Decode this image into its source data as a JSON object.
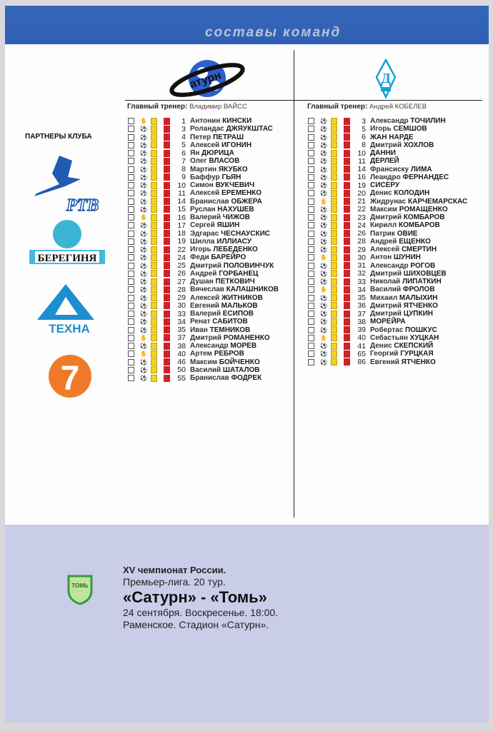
{
  "header": {
    "title": "составы команд"
  },
  "home": {
    "logo_text": "атурн",
    "coach_label": "Главный тренер:",
    "coach": "Владимир ВАЙСС",
    "players": [
      [
        "1",
        "Антонин",
        "КИНСКИ",
        "glove"
      ],
      [
        "3",
        "Роландас",
        "ДЖЯУКШТАС",
        "ball"
      ],
      [
        "4",
        "Петер",
        "ПЕТРАШ",
        "ball"
      ],
      [
        "5",
        "Алексей",
        "ИГОНИН",
        "ball"
      ],
      [
        "6",
        "Ян",
        "ДЮРИЦА",
        "ball"
      ],
      [
        "7",
        "Олег",
        "ВЛАСОВ",
        "ball"
      ],
      [
        "8",
        "Мартин",
        "ЯКУБКО",
        "ball"
      ],
      [
        "9",
        "Баффур",
        "ГЬЯН",
        "ball"
      ],
      [
        "10",
        "Симон",
        "ВУКЧЕВИЧ",
        "ball"
      ],
      [
        "11",
        "Алексей",
        "ЕРЕМЕНКО",
        "ball"
      ],
      [
        "14",
        "Бранислав",
        "ОБЖЕРА",
        "ball"
      ],
      [
        "15",
        "Руслан",
        "НАХУШЕВ",
        "ball"
      ],
      [
        "16",
        "Валерий",
        "ЧИЖОВ",
        "glove"
      ],
      [
        "17",
        "Сергей",
        "ЯШИН",
        "ball"
      ],
      [
        "18",
        "Эдгарас",
        "ЧЕСНАУСКИС",
        "ball"
      ],
      [
        "19",
        "Шилла",
        "ИЛЛИАСУ",
        "ball"
      ],
      [
        "22",
        "Игорь",
        "ЛЕБЕДЕНКО",
        "ball"
      ],
      [
        "24",
        "Феди",
        "БАРЕЙРО",
        "ball"
      ],
      [
        "25",
        "Дмитрий",
        "ПОЛОВИНЧУК",
        "ball"
      ],
      [
        "26",
        "Андрей",
        "ГОРБАНЕЦ",
        "ball"
      ],
      [
        "27",
        "Душан",
        "ПЕТКОВИЧ",
        "ball"
      ],
      [
        "28",
        "Вячеслав",
        "КАЛАШНИКОВ",
        "ball"
      ],
      [
        "29",
        "Алексей",
        "ЖИТНИКОВ",
        "ball"
      ],
      [
        "30",
        "Евгений",
        "МАЛЬКОВ",
        "ball"
      ],
      [
        "33",
        "Валерий",
        "ЕСИПОВ",
        "ball"
      ],
      [
        "34",
        "Ренат",
        "САБИТОВ",
        "ball"
      ],
      [
        "35",
        "Иван",
        "ТЕМНИКОВ",
        "ball"
      ],
      [
        "37",
        "Дмитрий",
        "РОМАНЕНКО",
        "glove"
      ],
      [
        "38",
        "Александр",
        "МОРЕВ",
        "ball"
      ],
      [
        "40",
        "Артем",
        "РЕБРОВ",
        "glove"
      ],
      [
        "46",
        "Максим",
        "БОЙЧЕНКО",
        "ball"
      ],
      [
        "50",
        "Василий",
        "ШАТАЛОВ",
        "ball"
      ],
      [
        "55",
        "Бранислав",
        "ФОДРЕК",
        "ball"
      ]
    ]
  },
  "away": {
    "logo_text": "Д",
    "coach_label": "Главный тренер:",
    "coach": "Андрей КОБЕЛЕВ",
    "players": [
      [
        "3",
        "Александр",
        "ТОЧИЛИН",
        "ball"
      ],
      [
        "5",
        "Игорь",
        "СЕМШОВ",
        "ball"
      ],
      [
        "6",
        "",
        "ЖАН НАРДЕ",
        "ball"
      ],
      [
        "8",
        "Дмитрий",
        "ХОХЛОВ",
        "ball"
      ],
      [
        "10",
        "",
        "ДАННИ",
        "ball"
      ],
      [
        "11",
        "",
        "ДЕРЛЕЙ",
        "ball"
      ],
      [
        "14",
        "Франсиску",
        "ЛИМА",
        "ball"
      ],
      [
        "16",
        "Леандро",
        "ФЕРНАНДЕС",
        "ball"
      ],
      [
        "19",
        "",
        "СИСЕРУ",
        "ball"
      ],
      [
        "20",
        "Денис",
        "КОЛОДИН",
        "ball"
      ],
      [
        "21",
        "Жидрунас",
        "КАРЧЕМАРСКАС",
        "glove"
      ],
      [
        "22",
        "Максим",
        "РОМАЩЕНКО",
        "ball"
      ],
      [
        "23",
        "Дмитрий",
        "КОМБАРОВ",
        "ball"
      ],
      [
        "24",
        "Кирилл",
        "КОМБАРОВ",
        "ball"
      ],
      [
        "26",
        "Патрик",
        "ОВИЕ",
        "ball"
      ],
      [
        "28",
        "Андрей",
        "ЕЩЕНКО",
        "ball"
      ],
      [
        "29",
        "Алексей",
        "СМЕРТИН",
        "ball"
      ],
      [
        "30",
        "Антон",
        "ШУНИН",
        "glove"
      ],
      [
        "31",
        "Александр",
        "РОГОВ",
        "ball"
      ],
      [
        "32",
        "Дмитрий",
        "ШИХОВЦЕВ",
        "ball"
      ],
      [
        "33",
        "Николай",
        "ЛИПАТКИН",
        "ball"
      ],
      [
        "34",
        "Василий",
        "ФРОЛОВ",
        "glove"
      ],
      [
        "35",
        "Михаил",
        "МАЛЫХИН",
        "ball"
      ],
      [
        "36",
        "Дмитрий",
        "ЯТЧЕНКО",
        "ball"
      ],
      [
        "37",
        "Дмитрий",
        "ЦУПКИН",
        "ball"
      ],
      [
        "38",
        "",
        "МОРЕЙРА",
        "ball"
      ],
      [
        "39",
        "Робертас",
        "ПОШКУС",
        "ball"
      ],
      [
        "40",
        "Себастьян",
        "ХУЦКАН",
        "glove"
      ],
      [
        "41",
        "Денис",
        "СКЕПСКИЙ",
        "ball"
      ],
      [
        "65",
        "Георгий",
        "ГУРЦКАЯ",
        "ball"
      ],
      [
        "86",
        "Евгений",
        "ЯТЧЕНКО",
        "ball"
      ]
    ]
  },
  "partners": {
    "title": "ПАРТНЕРЫ КЛУБА",
    "logos": [
      "РТВ",
      "БЕРЕГИНЯ",
      "ТЕХНА",
      "7"
    ]
  },
  "match": {
    "line1": "XV чемпионат России.",
    "line2": "Премьер-лига. 20 тур.",
    "line3": "«Сатурн» - «Томь»",
    "line4": "24 сентября. Воскресенье. 18:00.",
    "line5": "Раменское. Стадион «Сатурн».",
    "logo_text": "ТОМЬ"
  },
  "colors": {
    "header": "#2f60b4",
    "yellow_card": "#f3d21a",
    "red_card": "#cc2229",
    "footer": "#c9cde8"
  }
}
